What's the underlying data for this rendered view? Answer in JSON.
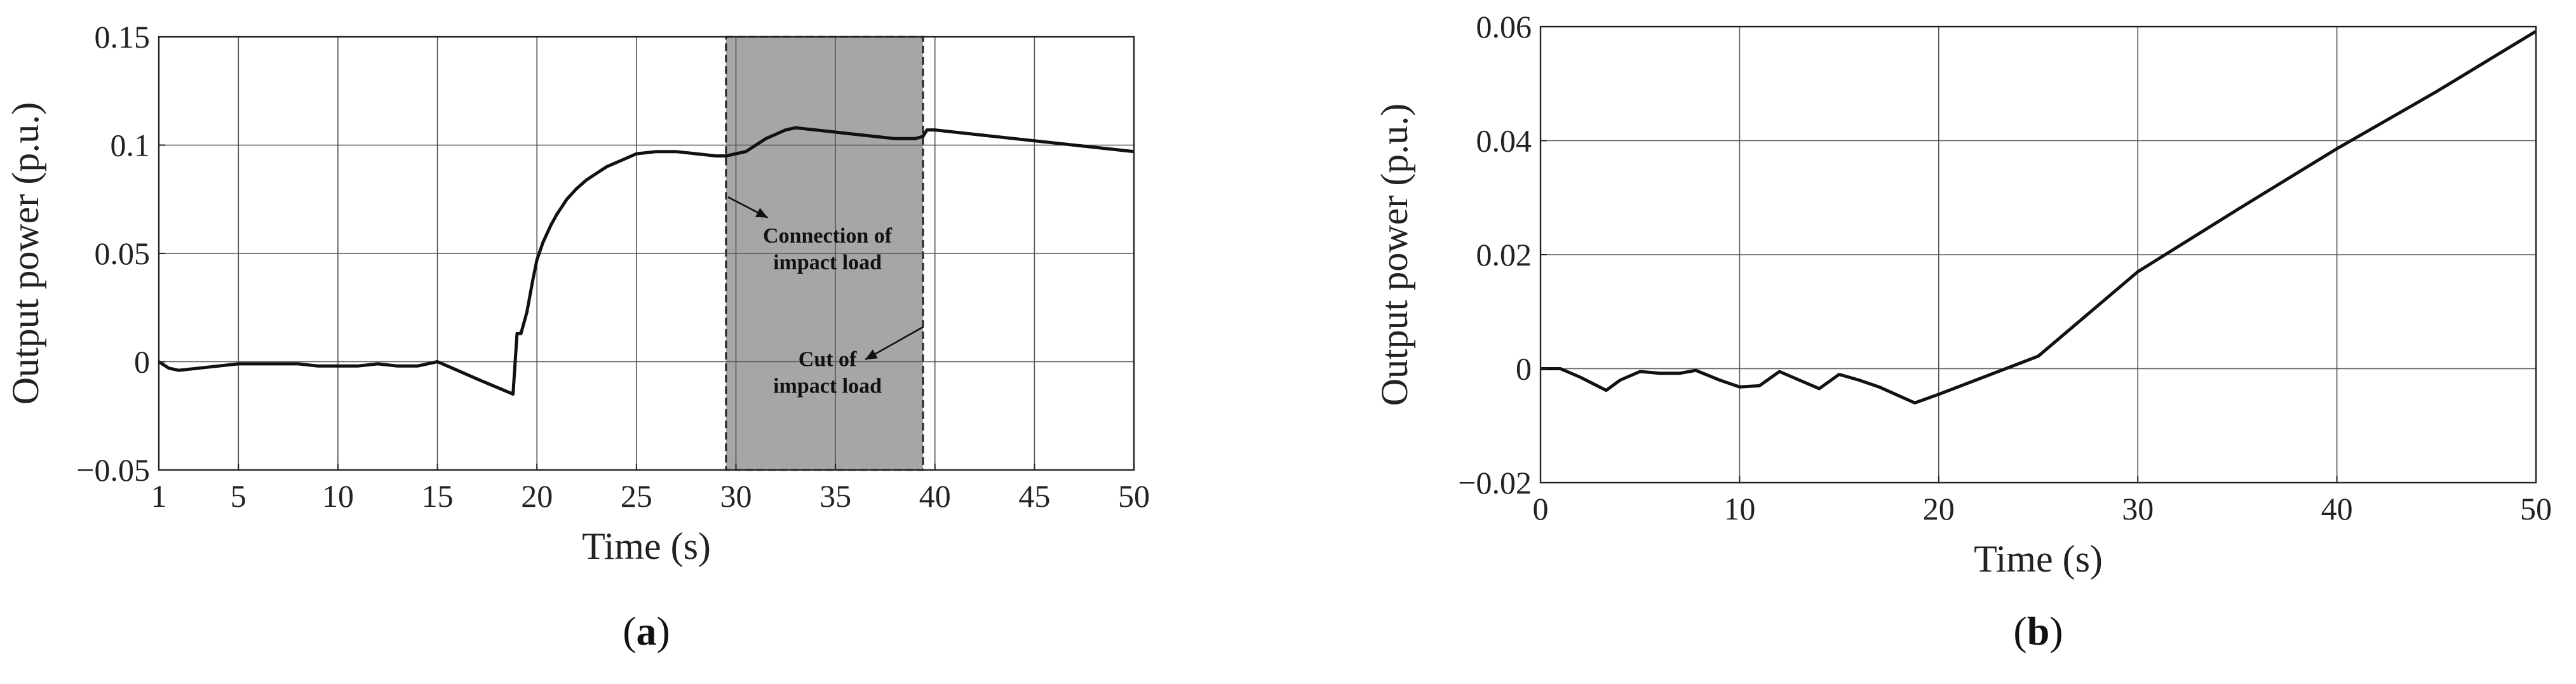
{
  "chart_data": [
    {
      "type": "line",
      "panel_label": {
        "open": "(",
        "letter": "a",
        "close": ")"
      },
      "title": "",
      "xlabel": "Time (s)",
      "ylabel": "Output power (p.u.)",
      "xlim": [
        1,
        50
      ],
      "ylim": [
        -0.05,
        0.15
      ],
      "xticks": [
        1,
        5,
        10,
        15,
        20,
        25,
        30,
        35,
        40,
        45,
        50
      ],
      "yticks": [
        -0.05,
        0,
        0.05,
        0.1,
        0.15
      ],
      "xtick_labels": [
        "1",
        "5",
        "10",
        "15",
        "20",
        "25",
        "30",
        "35",
        "40",
        "45",
        "50"
      ],
      "ytick_labels": [
        "−0.05",
        "0",
        "0.05",
        "0.1",
        "0.15"
      ],
      "grid": true,
      "shaded_region": {
        "x": [
          29.5,
          39.4
        ],
        "color": "#a6a6a6"
      },
      "annotations": [
        {
          "lines": [
            "Connection of",
            "impact load"
          ],
          "arrow_to": [
            29.6,
            0.076
          ]
        },
        {
          "lines": [
            "Cut of",
            "impact load"
          ],
          "arrow_to": [
            39.4,
            0.016
          ]
        }
      ],
      "series": [
        {
          "x": [
            1,
            1.5,
            2,
            3,
            4,
            5,
            6,
            7,
            8,
            9,
            10,
            11,
            12,
            13,
            14,
            15,
            16,
            17,
            18.8,
            19,
            19.2,
            19.5,
            19.8,
            20,
            20.3,
            20.7,
            21,
            21.5,
            22,
            22.5,
            23,
            23.5,
            24,
            24.5,
            25,
            26,
            27,
            28,
            29,
            29.5,
            30,
            30.5,
            31,
            31.5,
            32,
            32.5,
            33,
            34,
            35,
            36,
            37,
            38,
            39,
            39.4,
            39.6,
            40,
            42,
            44,
            46,
            48,
            50
          ],
          "y": [
            0,
            -0.003,
            -0.004,
            -0.003,
            -0.002,
            -0.001,
            -0.001,
            -0.001,
            -0.001,
            -0.002,
            -0.002,
            -0.002,
            -0.001,
            -0.002,
            -0.002,
            0.0,
            -0.004,
            -0.008,
            -0.015,
            0.013,
            0.013,
            0.023,
            0.038,
            0.047,
            0.055,
            0.063,
            0.068,
            0.075,
            0.08,
            0.084,
            0.087,
            0.09,
            0.092,
            0.094,
            0.096,
            0.097,
            0.097,
            0.096,
            0.095,
            0.095,
            0.096,
            0.097,
            0.1,
            0.103,
            0.105,
            0.107,
            0.108,
            0.107,
            0.106,
            0.105,
            0.104,
            0.103,
            0.103,
            0.104,
            0.107,
            0.107,
            0.105,
            0.103,
            0.101,
            0.099,
            0.097
          ]
        }
      ]
    },
    {
      "type": "line",
      "panel_label": {
        "open": "(",
        "letter": "b",
        "close": ")"
      },
      "title": "",
      "xlabel": "Time (s)",
      "ylabel": "Output power (p.u.)",
      "xlim": [
        0,
        50
      ],
      "ylim": [
        -0.02,
        0.06
      ],
      "xticks": [
        0,
        10,
        20,
        30,
        40,
        50
      ],
      "yticks": [
        -0.02,
        0,
        0.02,
        0.04,
        0.06
      ],
      "xtick_labels": [
        "0",
        "10",
        "20",
        "30",
        "40",
        "50"
      ],
      "ytick_labels": [
        "−0.02",
        "0",
        "0.02",
        "0.04",
        "0.06"
      ],
      "grid": true,
      "series": [
        {
          "x": [
            0,
            1,
            2,
            3.3,
            4,
            5,
            6,
            7,
            7.8,
            9,
            10,
            11,
            12,
            13,
            14,
            15,
            16,
            17,
            18.8,
            20,
            25,
            30,
            35,
            40,
            45,
            50
          ],
          "y": [
            0,
            0,
            -0.0015,
            -0.0038,
            -0.002,
            -0.0005,
            -0.0008,
            -0.0008,
            -0.0003,
            -0.002,
            -0.0032,
            -0.003,
            -0.0005,
            -0.002,
            -0.0035,
            -0.001,
            -0.002,
            -0.0032,
            -0.006,
            -0.0045,
            0.0022,
            0.017,
            0.0279,
            0.0386,
            0.0486,
            0.0592
          ]
        }
      ]
    }
  ]
}
